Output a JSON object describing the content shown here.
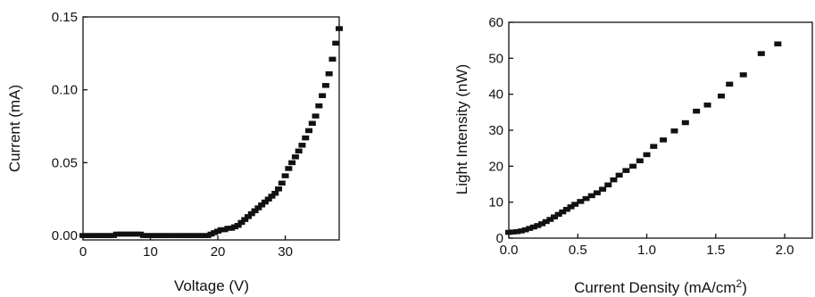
{
  "chart_data": [
    {
      "type": "scatter",
      "title": "",
      "xlabel": "Voltage (V)",
      "ylabel": "Current (mA)",
      "xlim": [
        0,
        38
      ],
      "ylim": [
        -0.003,
        0.15
      ],
      "xticks": [
        0,
        10,
        20,
        30
      ],
      "xtick_labels": [
        "0",
        "10",
        "20",
        "30"
      ],
      "yticks": [
        0.0,
        0.05,
        0.1,
        0.15
      ],
      "ytick_labels": [
        "0.00",
        "0.05",
        "0.10",
        "0.15"
      ],
      "marker": "square",
      "color": "#111111",
      "grid": false,
      "series": [
        {
          "x": [
            0,
            0.5,
            1,
            1.5,
            2,
            2.5,
            3,
            3.5,
            4,
            4.5,
            5,
            5.5,
            6,
            6.5,
            7,
            7.5,
            8,
            8.5,
            9,
            9.5,
            10,
            10.5,
            11,
            11.5,
            12,
            12.5,
            13,
            13.5,
            14,
            14.5,
            15,
            15.5,
            16,
            16.5,
            17,
            17.5,
            18,
            18.5,
            19,
            19.5,
            20,
            20.5,
            21,
            21.5,
            22,
            22.5,
            23,
            23.5,
            24,
            24.5,
            25,
            25.5,
            26,
            26.5,
            27,
            27.5,
            28,
            28.5,
            29,
            29.5,
            30,
            30.5,
            31,
            31.5,
            32,
            32.5,
            33,
            33.5,
            34,
            34.5,
            35,
            35.5,
            36,
            36.5,
            37,
            37.5,
            38
          ],
          "y": [
            0.0,
            0.0,
            0.0,
            0.0,
            0.0,
            0.0,
            0.0,
            0.0,
            0.0,
            0.0,
            0.001,
            0.001,
            0.001,
            0.001,
            0.001,
            0.001,
            0.001,
            0.001,
            0.0,
            0.0,
            0.0,
            0.0,
            0.0,
            0.0,
            0.0,
            0.0,
            0.0,
            0.0,
            0.0,
            0.0,
            0.0,
            0.0,
            0.0,
            0.0,
            0.0,
            0.0,
            0.0,
            0.0,
            0.001,
            0.002,
            0.003,
            0.004,
            0.004,
            0.005,
            0.005,
            0.006,
            0.007,
            0.009,
            0.011,
            0.013,
            0.015,
            0.017,
            0.019,
            0.021,
            0.023,
            0.025,
            0.027,
            0.029,
            0.032,
            0.036,
            0.041,
            0.046,
            0.05,
            0.054,
            0.058,
            0.062,
            0.067,
            0.072,
            0.077,
            0.082,
            0.089,
            0.096,
            0.103,
            0.111,
            0.121,
            0.132,
            0.142
          ]
        }
      ]
    },
    {
      "type": "scatter",
      "title": "",
      "xlabel_main": "Current Density (mA/cm",
      "xlabel_sup": "2",
      "xlabel_end": ")",
      "ylabel": "Light Intensity (nW)",
      "xlim": [
        0,
        2.2
      ],
      "ylim": [
        0,
        60
      ],
      "xticks": [
        0.0,
        0.5,
        1.0,
        1.5,
        2.0
      ],
      "xtick_labels": [
        "0.0",
        "0.5",
        "1.0",
        "1.5",
        "2.0"
      ],
      "yticks": [
        0,
        10,
        20,
        30,
        40,
        50,
        60
      ],
      "ytick_labels": [
        "0",
        "10",
        "20",
        "30",
        "40",
        "50",
        "60"
      ],
      "marker": "square",
      "color": "#111111",
      "grid": false,
      "series": [
        {
          "x": [
            0.0,
            0.03,
            0.06,
            0.09,
            0.12,
            0.15,
            0.18,
            0.21,
            0.24,
            0.27,
            0.3,
            0.33,
            0.36,
            0.39,
            0.42,
            0.45,
            0.48,
            0.52,
            0.56,
            0.6,
            0.64,
            0.68,
            0.72,
            0.76,
            0.8,
            0.85,
            0.9,
            0.95,
            1.0,
            1.05,
            1.12,
            1.2,
            1.28,
            1.36,
            1.44,
            1.54,
            1.6,
            1.7,
            1.83,
            1.95
          ],
          "y": [
            1.6,
            1.7,
            1.8,
            2.0,
            2.3,
            2.7,
            3.1,
            3.5,
            4.0,
            4.6,
            5.2,
            5.9,
            6.6,
            7.3,
            8.0,
            8.7,
            9.4,
            10.2,
            11.0,
            11.8,
            12.6,
            13.6,
            14.8,
            16.2,
            17.5,
            18.8,
            20.0,
            21.5,
            23.2,
            25.5,
            27.3,
            29.8,
            32.1,
            35.3,
            37.0,
            39.5,
            42.8,
            45.4,
            51.3,
            54.0
          ]
        }
      ]
    }
  ]
}
